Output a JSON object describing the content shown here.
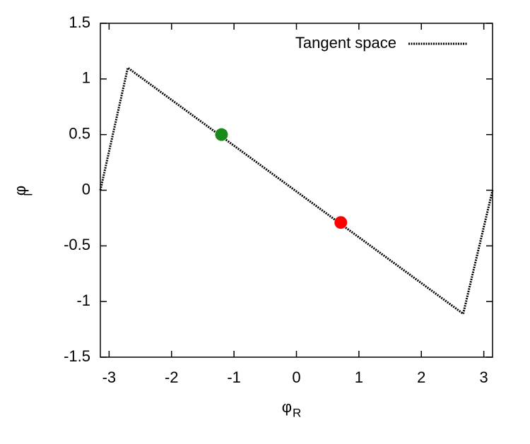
{
  "chart_data": {
    "type": "line",
    "x_label": "φ",
    "x_label_subscript": "R",
    "y_label": "φ",
    "y_label_subscript": "I",
    "series": [
      {
        "name": "Tangent space",
        "color": "#000000",
        "x": [
          -3.14,
          -2.7,
          2.67,
          3.14
        ],
        "values": [
          0,
          1.1,
          -1.11,
          0
        ]
      }
    ],
    "points": [
      {
        "x": -1.2,
        "y": 0.5,
        "color": "#1a8a1a"
      },
      {
        "x": 0.71,
        "y": -0.29,
        "color": "#ff0000"
      }
    ],
    "xlim": [
      -3.14,
      3.14
    ],
    "ylim": [
      -1.5,
      1.5
    ],
    "xticks": [
      -3,
      -2,
      -1,
      0,
      1,
      2,
      3
    ],
    "yticks": [
      -1.5,
      -1,
      -0.5,
      0,
      0.5,
      1,
      1.5
    ],
    "grid": false,
    "legend": "top-right"
  }
}
